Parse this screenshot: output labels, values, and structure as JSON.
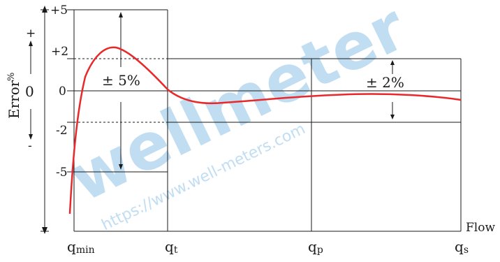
{
  "axis": {
    "y_title": "Error",
    "y_title_unit": "%",
    "x_title": "Flow",
    "sign_plus": "+",
    "sign_zero": "0",
    "sign_minus": "-"
  },
  "y_ticks": [
    "+5",
    "+2",
    "0",
    "-2",
    "-5"
  ],
  "x_ticks": {
    "qmin_main": "q",
    "qmin_sub": "min",
    "qt_main": "q",
    "qt_sub": "t",
    "qp_main": "q",
    "qp_sub": "p",
    "qs_main": "q",
    "qs_sub": "s"
  },
  "zones": {
    "lower_tolerance": "± 5%",
    "upper_tolerance": "± 2%"
  },
  "watermark": {
    "logo_text": "wellmeter",
    "url": "https://www.well-meters.com"
  },
  "colors": {
    "curve": "#e8282a",
    "lines": "#1a1a1a",
    "watermark_blue": "#8fc3e8",
    "watermark_accent": "#f2a08f"
  }
}
